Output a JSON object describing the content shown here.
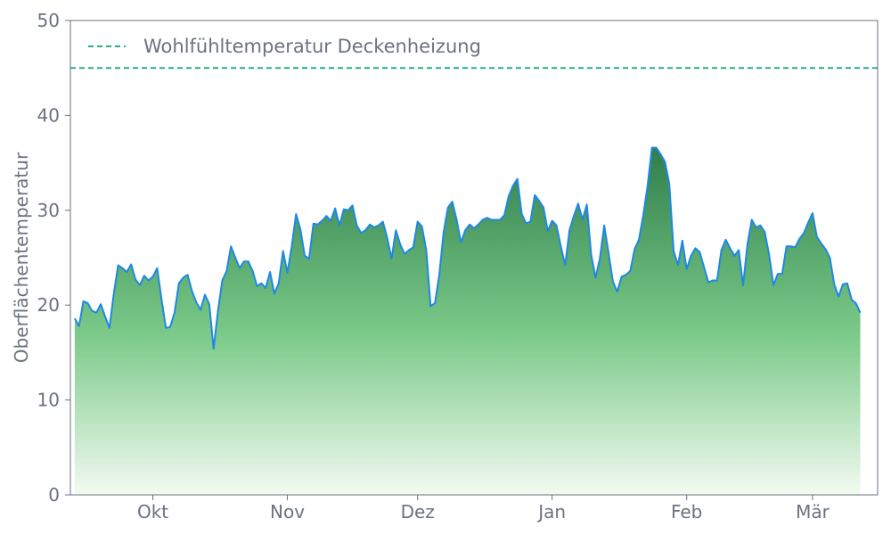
{
  "chart_data": {
    "type": "area",
    "title": "",
    "xlabel": "",
    "ylabel": "Oberflächentemperatur",
    "ylim": [
      0,
      50
    ],
    "yticks": [
      0,
      10,
      20,
      30,
      40,
      50
    ],
    "grid": false,
    "legend_position": "top-left",
    "x_start": "2023-09-12",
    "x_end": "2024-03-16",
    "xticks": [
      {
        "date": "2023-10-01",
        "label": "Okt"
      },
      {
        "date": "2023-11-01",
        "label": "Nov"
      },
      {
        "date": "2023-12-01",
        "label": "Dez"
      },
      {
        "date": "2024-01-01",
        "label": "Jan"
      },
      {
        "date": "2024-02-01",
        "label": "Feb"
      },
      {
        "date": "2024-03-01",
        "label": "Mär"
      }
    ],
    "series": [
      {
        "x_start": "2023-09-13",
        "x_step_days": 1,
        "values": [
          18.6,
          17.8,
          20.4,
          20.2,
          19.4,
          19.2,
          20.1,
          18.8,
          17.6,
          21.2,
          24.2,
          23.9,
          23.5,
          24.3,
          22.7,
          22.1,
          23.1,
          22.6,
          23.0,
          23.9,
          20.6,
          17.6,
          17.7,
          19.2,
          22.3,
          22.9,
          23.2,
          21.5,
          20.3,
          19.5,
          21.1,
          20.1,
          15.4,
          19.4,
          22.6,
          23.6,
          26.2,
          25.0,
          23.9,
          24.6,
          24.6,
          23.6,
          22.0,
          22.3,
          21.8,
          23.5,
          21.2,
          22.3,
          25.7,
          23.4,
          26.2,
          29.6,
          28.0,
          25.2,
          24.9,
          28.6,
          28.5,
          28.9,
          29.4,
          28.9,
          30.2,
          28.4,
          30.1,
          30.0,
          30.5,
          28.4,
          27.6,
          27.9,
          28.5,
          28.2,
          28.4,
          28.8,
          27.1,
          24.9,
          27.9,
          26.4,
          25.4,
          25.8,
          26.1,
          28.8,
          28.3,
          25.8,
          19.9,
          20.2,
          23.2,
          27.7,
          30.3,
          30.9,
          29.0,
          26.6,
          27.9,
          28.5,
          28.1,
          28.5,
          29.0,
          29.2,
          29.0,
          29.0,
          29.0,
          29.5,
          31.5,
          32.6,
          33.3,
          29.6,
          28.6,
          28.8,
          31.6,
          31.0,
          30.3,
          27.8,
          28.9,
          28.4,
          26.2,
          24.2,
          27.9,
          29.4,
          30.7,
          29.0,
          30.6,
          25.3,
          22.9,
          24.9,
          28.4,
          25.5,
          22.5,
          21.4,
          23.0,
          23.2,
          23.6,
          25.9,
          26.9,
          29.5,
          32.6,
          36.6,
          36.6,
          35.9,
          35.1,
          32.8,
          25.7,
          24.2,
          26.8,
          23.8,
          25.2,
          26.0,
          25.6,
          24.0,
          22.4,
          22.6,
          22.6,
          25.8,
          26.9,
          26.0,
          25.2,
          25.8,
          22.1,
          26.4,
          29.0,
          28.2,
          28.4,
          27.7,
          25.3,
          22.1,
          23.3,
          23.3,
          26.2,
          26.2,
          26.1,
          27.0,
          27.6,
          28.7,
          29.7,
          27.2,
          26.5,
          25.9,
          25.0,
          22.2,
          20.9,
          22.2,
          22.3,
          20.6,
          20.2,
          19.2
        ]
      }
    ],
    "reference_line": {
      "name": "Wohlfühltemperatur Deckenheizung",
      "value": 45
    },
    "colors": {
      "line": "#1e88e5",
      "reference": "#26b08a",
      "fill_top": "#2e7d4a",
      "fill_mid": "#7ccb8a",
      "fill_bottom": "#f3faf1",
      "axis": "#6b7280"
    }
  }
}
